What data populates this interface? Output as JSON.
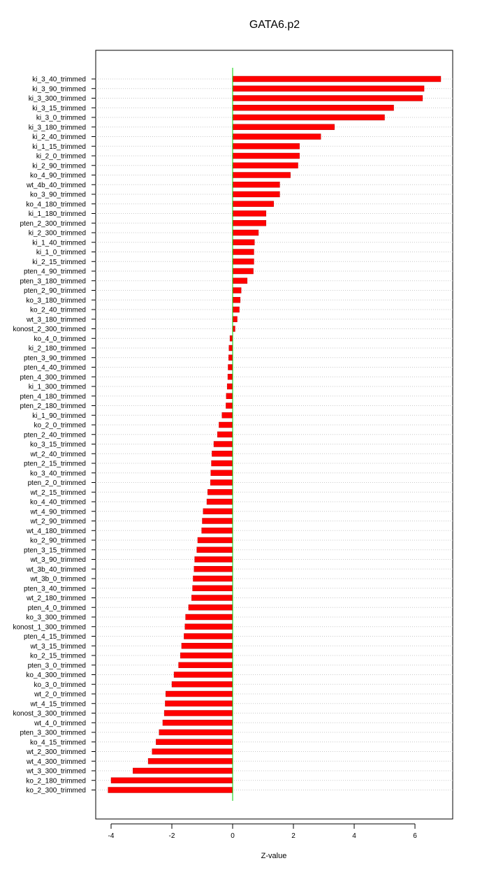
{
  "chart_data": {
    "type": "bar",
    "orientation": "horizontal",
    "title": "GATA6.p2",
    "xlabel": "Z-value",
    "ylabel": "",
    "xlim": [
      -4.3,
      7.0
    ],
    "xticks": [
      -4,
      -2,
      0,
      2,
      4,
      6
    ],
    "grid": "horizontal dotted",
    "bar_color": "#ff0000",
    "zero_line_color": "#00cc00",
    "categories": [
      "ki_3_40_trimmed",
      "ki_3_90_trimmed",
      "ki_3_300_trimmed",
      "ki_3_15_trimmed",
      "ki_3_0_trimmed",
      "ki_3_180_trimmed",
      "ki_2_40_trimmed",
      "ki_1_15_trimmed",
      "ki_2_0_trimmed",
      "ki_2_90_trimmed",
      "ko_4_90_trimmed",
      "wt_4b_40_trimmed",
      "ko_3_90_trimmed",
      "ko_4_180_trimmed",
      "ki_1_180_trimmed",
      "pten_2_300_trimmed",
      "ki_2_300_trimmed",
      "ki_1_40_trimmed",
      "ki_1_0_trimmed",
      "ki_2_15_trimmed",
      "pten_4_90_trimmed",
      "pten_3_180_trimmed",
      "pten_2_90_trimmed",
      "ko_3_180_trimmed",
      "ko_2_40_trimmed",
      "wt_3_180_trimmed",
      "konost_2_300_trimmed",
      "ko_4_0_trimmed",
      "ki_2_180_trimmed",
      "pten_3_90_trimmed",
      "pten_4_40_trimmed",
      "pten_4_300_trimmed",
      "ki_1_300_trimmed",
      "pten_4_180_trimmed",
      "pten_2_180_trimmed",
      "ki_1_90_trimmed",
      "ko_2_0_trimmed",
      "pten_2_40_trimmed",
      "ko_3_15_trimmed",
      "wt_2_40_trimmed",
      "pten_2_15_trimmed",
      "ko_3_40_trimmed",
      "pten_2_0_trimmed",
      "wt_2_15_trimmed",
      "ko_4_40_trimmed",
      "wt_4_90_trimmed",
      "wt_2_90_trimmed",
      "wt_4_180_trimmed",
      "ko_2_90_trimmed",
      "pten_3_15_trimmed",
      "wt_3_90_trimmed",
      "wt_3b_40_trimmed",
      "wt_3b_0_trimmed",
      "pten_3_40_trimmed",
      "wt_2_180_trimmed",
      "pten_4_0_trimmed",
      "ko_3_300_trimmed",
      "konost_1_300_trimmed",
      "pten_4_15_trimmed",
      "wt_3_15_trimmed",
      "ko_2_15_trimmed",
      "pten_3_0_trimmed",
      "ko_4_300_trimmed",
      "ko_3_0_trimmed",
      "wt_2_0_trimmed",
      "wt_4_15_trimmed",
      "konost_3_300_trimmed",
      "wt_4_0_trimmed",
      "pten_3_300_trimmed",
      "ko_4_15_trimmed",
      "wt_2_300_trimmed",
      "wt_4_300_trimmed",
      "wt_3_300_trimmed",
      "ko_2_180_trimmed",
      "ko_2_300_trimmed"
    ],
    "values": [
      6.85,
      6.3,
      6.25,
      5.3,
      5.0,
      3.35,
      2.9,
      2.2,
      2.2,
      2.15,
      1.9,
      1.55,
      1.55,
      1.35,
      1.1,
      1.1,
      0.85,
      0.72,
      0.7,
      0.7,
      0.68,
      0.48,
      0.28,
      0.25,
      0.22,
      0.15,
      0.08,
      -0.09,
      -0.12,
      -0.13,
      -0.15,
      -0.16,
      -0.18,
      -0.21,
      -0.22,
      -0.35,
      -0.45,
      -0.5,
      -0.62,
      -0.68,
      -0.7,
      -0.72,
      -0.73,
      -0.82,
      -0.85,
      -0.97,
      -1.0,
      -1.02,
      -1.15,
      -1.18,
      -1.25,
      -1.27,
      -1.3,
      -1.32,
      -1.35,
      -1.45,
      -1.55,
      -1.57,
      -1.6,
      -1.68,
      -1.72,
      -1.78,
      -1.93,
      -2.0,
      -2.2,
      -2.22,
      -2.25,
      -2.3,
      -2.42,
      -2.52,
      -2.65,
      -2.78,
      -3.28,
      -4.0,
      -4.1
    ]
  }
}
